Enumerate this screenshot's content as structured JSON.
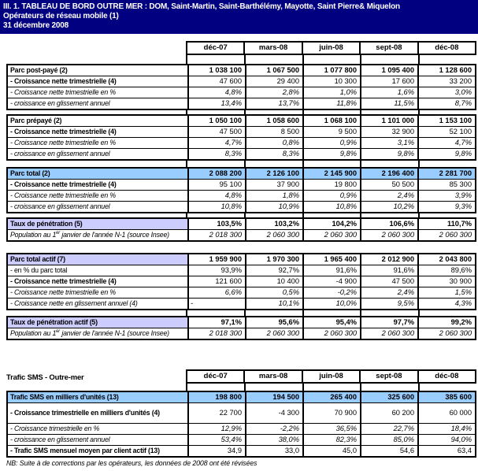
{
  "banner": {
    "line1": "III. 1. TABLEAU DE BORD OUTRE MER : DOM, Saint-Martin, Saint-Barthélémy, Mayotte, Saint Pierre& Miquelon",
    "line2": "Opérateurs de réseau mobile (1)",
    "line3": "31 décembre  2008"
  },
  "columns": [
    "déc-07",
    "mars-08",
    "juin-08",
    "sept-08",
    "déc-08"
  ],
  "parc_post_paye": {
    "rows": [
      {
        "label": "Parc post-payé (2)",
        "style": "bold",
        "values": [
          "1 038 100",
          "1 067 500",
          "1 077 800",
          "1 095 400",
          "1 128 600"
        ]
      },
      {
        "label": "- Croissance nette trimestrielle (4)",
        "style": "boldlabel",
        "values": [
          "47 600",
          "29 400",
          "10 300",
          "17 600",
          "33 200"
        ]
      },
      {
        "label": "- Croissance nette trimestrielle en %",
        "style": "italic",
        "values": [
          "4,8%",
          "2,8%",
          "1,0%",
          "1,6%",
          "3,0%"
        ]
      },
      {
        "label": "- croissance en glissement annuel",
        "style": "italic",
        "values": [
          "13,4%",
          "13,7%",
          "11,8%",
          "11,5%",
          "8,7%"
        ]
      }
    ]
  },
  "parc_prepaye": {
    "rows": [
      {
        "label": "Parc prépayé (2)",
        "style": "bold",
        "values": [
          "1 050 100",
          "1 058 600",
          "1 068 100",
          "1 101 000",
          "1 153 100"
        ]
      },
      {
        "label": "- Croissance nette trimestrielle (4)",
        "style": "boldlabel",
        "values": [
          "47 500",
          "8 500",
          "9 500",
          "32 900",
          "52 100"
        ]
      },
      {
        "label": "- Croissance nette trimestrielle en %",
        "style": "italic",
        "values": [
          "4,7%",
          "0,8%",
          "0,9%",
          "3,1%",
          "4,7%"
        ]
      },
      {
        "label": "- croissance en glissement annuel",
        "style": "italic",
        "values": [
          "8,3%",
          "8,3%",
          "9,8%",
          "9,8%",
          "9,8%"
        ]
      }
    ]
  },
  "parc_total": {
    "rows": [
      {
        "label": "Parc total (2)",
        "style": "band",
        "values": [
          "2 088 200",
          "2 126 100",
          "2 145 900",
          "2 196 400",
          "2 281 700"
        ]
      },
      {
        "label": "- Croissance nette trimestrielle (4)",
        "style": "boldlabel",
        "values": [
          "95 100",
          "37 900",
          "19 800",
          "50 500",
          "85 300"
        ]
      },
      {
        "label": "- Croissance nette trimestrielle en %",
        "style": "italic",
        "values": [
          "4,8%",
          "1,8%",
          "0,9%",
          "2,4%",
          "3,9%"
        ]
      },
      {
        "label": "- croissance en glissement annuel",
        "style": "italic",
        "values": [
          "10,8%",
          "10,9%",
          "10,8%",
          "10,2%",
          "9,3%"
        ]
      }
    ]
  },
  "taux_penetration": {
    "rows": [
      {
        "label": "Taux de pénétration (5)",
        "style": "lav",
        "values": [
          "103,5%",
          "103,2%",
          "104,2%",
          "106,6%",
          "110,7%"
        ]
      },
      {
        "label_pre": "Population au 1",
        "label_sup": "er",
        "label_post": "  janvier de l'année N-1 (source Insee)",
        "style": "pop",
        "values": [
          "2 018 300",
          "2 060 300",
          "2 060 300",
          "2 060 300",
          "2 060 300"
        ]
      }
    ]
  },
  "parc_total_actif": {
    "rows": [
      {
        "label": "Parc total actif (7)",
        "style": "lav",
        "values": [
          "1 959 900",
          "1 970 300",
          "1 965 400",
          "2 012 900",
          "2 043 800"
        ]
      },
      {
        "label": "- en % du parc total",
        "style": "plain",
        "values": [
          "93,9%",
          "92,7%",
          "91,6%",
          "91,6%",
          "89,6%"
        ]
      },
      {
        "label": "- Croissance nette trimestrielle (4)",
        "style": "boldlabel",
        "values": [
          "121 600",
          "10 400",
          "-4 900",
          "47 500",
          "30 900"
        ]
      },
      {
        "label": "- Croissance nette trimestrielle en %",
        "style": "italic",
        "values": [
          "6,6%",
          "0,5%",
          "-0,2%",
          "2,4%",
          "1,5%"
        ]
      },
      {
        "label": "- Croissance nette en glissement annuel (4)",
        "style": "italic",
        "values": [
          "-",
          "10,1%",
          "10,0%",
          "9,5%",
          "4,3%"
        ]
      }
    ]
  },
  "taux_penetration_actif": {
    "rows": [
      {
        "label": "Taux de pénétration actif (5)",
        "style": "lav",
        "values": [
          "97,1%",
          "95,6%",
          "95,4%",
          "97,7%",
          "99,2%"
        ]
      },
      {
        "label_pre": "Population au 1",
        "label_sup": "er",
        "label_post": "  janvier de l'année N-1 (source Insee)",
        "style": "pop",
        "values": [
          "2 018 300",
          "2 060 300",
          "2 060 300",
          "2 060 300",
          "2 060 300"
        ]
      }
    ]
  },
  "trafic_sms": {
    "title": "Trafic SMS - Outre-mer",
    "rows": [
      {
        "label": "Trafic SMS en milliers d'unités (13)",
        "style": "band",
        "values": [
          "198 800",
          "194 500",
          "265 400",
          "325 600",
          "385 600"
        ]
      },
      {
        "label": "- Croissance trimestrielle en milliers d'unités (4)",
        "style": "boldlabel",
        "tall": true,
        "values": [
          "22 700",
          "-4 300",
          "70 900",
          "60 200",
          "60 000"
        ]
      },
      {
        "label": "- Croissance trimestrielle en %",
        "style": "italic",
        "values": [
          "12,9%",
          "-2,2%",
          "36,5%",
          "22,7%",
          "18,4%"
        ]
      },
      {
        "label": "- croissance en glissement annuel",
        "style": "italic",
        "values": [
          "53,4%",
          "38,0%",
          "82,3%",
          "85,0%",
          "94,0%"
        ]
      },
      {
        "label": "- Trafic SMS mensuel moyen par client actif (13)",
        "style": "boldlabel",
        "values": [
          "34,9",
          "33,0",
          "45,0",
          "54,6",
          "63,4"
        ]
      }
    ]
  },
  "footer_note": "NB: Suite à de corrections par les opérateurs, les données de 2008 ont été révisées",
  "colors": {
    "banner_background": "#000080",
    "banner_text": "#FFFFFF",
    "highlight_blue": "#99CCFF",
    "highlight_lavender": "#CCCCFF",
    "border": "#000000"
  }
}
